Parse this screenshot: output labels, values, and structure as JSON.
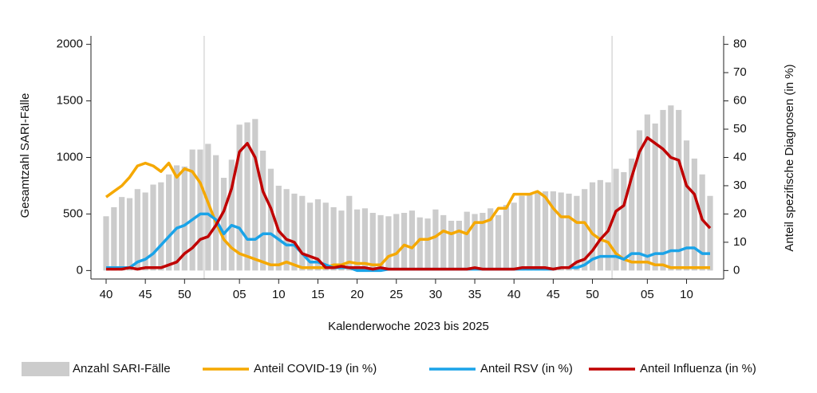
{
  "chart_data": {
    "type": "bar",
    "xlabel": "Kalenderwoche 2023 bis 2025",
    "ylabel": "Gesamtzahl SARI-Fälle",
    "y2label": "Anteil spezifische Diagnosen (in %)",
    "categories": [
      "40",
      null,
      null,
      null,
      null,
      "45",
      null,
      null,
      null,
      null,
      "50",
      null,
      null,
      null,
      null,
      null,
      null,
      "05",
      null,
      null,
      null,
      null,
      "10",
      null,
      null,
      null,
      null,
      "15",
      null,
      null,
      null,
      null,
      "20",
      null,
      null,
      null,
      null,
      "25",
      null,
      null,
      null,
      null,
      "30",
      null,
      null,
      null,
      null,
      "35",
      null,
      null,
      null,
      null,
      "40",
      null,
      null,
      null,
      null,
      "45",
      null,
      null,
      null,
      null,
      "50",
      null,
      null,
      null,
      null,
      null,
      null,
      "05",
      null,
      null,
      null,
      null,
      "10",
      null,
      null,
      null
    ],
    "ylim": [
      -75,
      2075
    ],
    "yticks": [
      0,
      500,
      1000,
      1500,
      2000
    ],
    "y2lim": [
      -3,
      83
    ],
    "y2ticks": [
      0,
      10,
      20,
      30,
      40,
      50,
      60,
      70,
      80
    ],
    "series": [
      {
        "name": "Anzahl SARI-Fälle",
        "type": "bar",
        "color": "#cccccc",
        "values": [
          480,
          560,
          650,
          640,
          720,
          690,
          760,
          780,
          850,
          930,
          920,
          1070,
          1070,
          1120,
          1020,
          820,
          980,
          1290,
          1310,
          1340,
          1060,
          900,
          750,
          720,
          680,
          660,
          600,
          630,
          600,
          560,
          530,
          660,
          540,
          550,
          510,
          490,
          480,
          500,
          510,
          530,
          470,
          460,
          540,
          490,
          440,
          440,
          520,
          500,
          510,
          550,
          490,
          580,
          600,
          660,
          680,
          690,
          700,
          700,
          690,
          680,
          660,
          720,
          780,
          800,
          780,
          900,
          870,
          990,
          1240,
          1380,
          1300,
          1420,
          1460,
          1420,
          1150,
          990,
          850,
          660
        ]
      },
      {
        "name": "Anteil COVID-19 (in %)",
        "type": "line",
        "axis": "y2",
        "color": "#f5a800",
        "values": [
          26,
          28,
          30,
          33,
          37,
          38,
          37,
          35,
          38,
          33,
          36,
          35,
          31,
          24,
          17,
          11,
          8,
          6,
          5,
          4,
          3,
          2,
          2,
          3,
          2,
          1,
          1,
          1,
          1,
          2,
          2,
          3,
          2.5,
          2.5,
          2,
          2,
          5,
          6,
          9,
          8,
          11,
          11,
          12,
          14,
          13,
          14,
          13,
          17,
          17,
          18,
          22,
          22,
          27,
          27,
          27,
          28,
          26,
          22,
          19,
          19,
          17,
          17,
          13,
          11,
          10,
          6,
          4,
          3,
          3,
          3,
          2,
          2,
          1,
          1,
          1,
          1,
          1,
          1
        ]
      },
      {
        "name": "Anteil RSV (in %)",
        "type": "line",
        "axis": "y2",
        "color": "#1aa3e8",
        "values": [
          1,
          1,
          1,
          1,
          3,
          4,
          6,
          9,
          12,
          15,
          16,
          18,
          20,
          20,
          18,
          13,
          16,
          15,
          11,
          11,
          13,
          13,
          11,
          9,
          9,
          6,
          3,
          3,
          2,
          1,
          1,
          1,
          0,
          0,
          0,
          0,
          0.5,
          0.5,
          0.5,
          0.5,
          0.5,
          0.5,
          0.5,
          0.5,
          0.5,
          0.5,
          0.5,
          0.5,
          0.5,
          0.5,
          0.5,
          0.5,
          0.5,
          0.5,
          0.5,
          0.5,
          0.5,
          0.5,
          1,
          1,
          1,
          2,
          4,
          5,
          5,
          5,
          4,
          6,
          6,
          5,
          6,
          6,
          7,
          7,
          8,
          8,
          6,
          6
        ]
      },
      {
        "name": "Anteil Influenza (in %)",
        "type": "line",
        "axis": "y2",
        "color": "#c00000",
        "values": [
          0.5,
          0.5,
          0.5,
          1,
          0.5,
          1,
          1,
          1,
          2,
          3,
          6,
          8,
          11,
          12,
          16,
          21,
          29,
          42,
          45,
          40,
          28,
          22,
          14,
          11,
          10,
          6,
          5,
          4,
          1,
          1,
          1.5,
          1,
          1,
          1,
          0.5,
          1,
          0.5,
          0.5,
          0.5,
          0.5,
          0.5,
          0.5,
          0.5,
          0.5,
          0.5,
          0.5,
          0.5,
          1,
          0.5,
          0.5,
          0.5,
          0.5,
          0.5,
          1,
          1,
          1,
          1,
          0.5,
          1,
          1,
          3,
          4,
          7,
          11,
          14,
          21,
          23,
          33,
          42,
          47,
          45,
          43,
          40,
          39,
          30,
          27,
          18,
          15
        ]
      }
    ]
  }
}
